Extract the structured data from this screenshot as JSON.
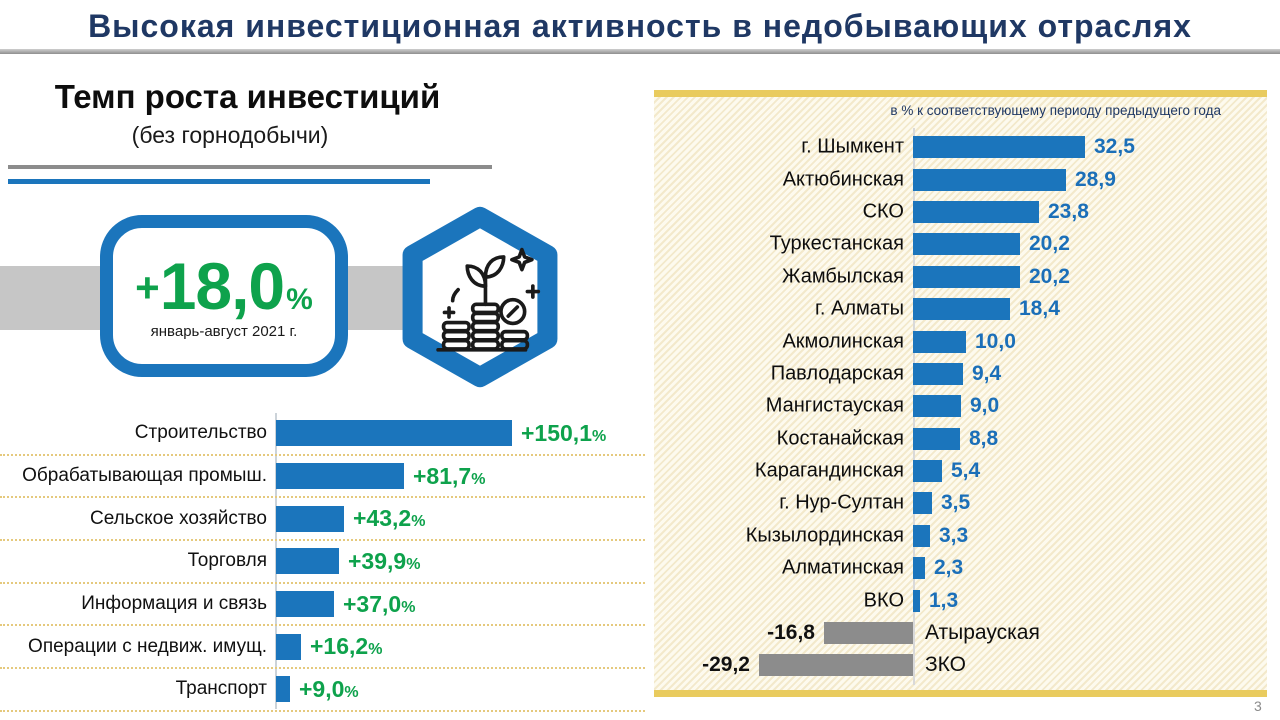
{
  "header": {
    "title": "Высокая инвестиционная активность в недобывающих отраслях"
  },
  "left_section": {
    "heading": "Темп роста инвестиций",
    "subheading": "(без горнодобычи)",
    "badge": {
      "value_plus": "+",
      "value": "18,0",
      "unit": "%",
      "caption": "январь-август 2021 г."
    },
    "icon": "coins-plant-growth-icon"
  },
  "right_section": {
    "note": "в % к соответствующему периоду предыдущего года"
  },
  "footer": {
    "page_number": "3"
  },
  "colors": {
    "accent_blue": "#1B75BC",
    "green": "#0EA24C",
    "navy": "#1F3864",
    "negative_gray": "#8C8C8C",
    "panel_gold": "#E9CB5E",
    "band_gray": "#C6C6C6"
  },
  "chart_data": [
    {
      "type": "bar",
      "orientation": "horizontal",
      "title": "Темп роста инвестиций (без горнодобычи)",
      "period": "январь-август 2021 г.",
      "total_growth": 18.0,
      "categories": [
        "Строительство",
        "Обрабатывающая промыш.",
        "Сельское хозяйство",
        "Торговля",
        "Информация и связь",
        "Операции с недвиж. имущ.",
        "Транспорт"
      ],
      "values": [
        150.1,
        81.7,
        43.2,
        39.9,
        37.0,
        16.2,
        9.0
      ],
      "display": [
        "+150,1",
        "+81,7",
        "+43,2",
        "+39,9",
        "+37,0",
        "+16,2",
        "+9,0"
      ],
      "unit": "%",
      "bar_color": "#1B75BC",
      "value_color": "#0EA24C",
      "xlim": [
        0,
        160
      ],
      "grid": false,
      "legend": "none"
    },
    {
      "type": "bar",
      "orientation": "horizontal",
      "subtitle": "в % к соответствующему периоду предыдущего года",
      "categories": [
        "г. Шымкент",
        "Актюбинская",
        "СКО",
        "Туркестанская",
        "Жамбылская",
        "г. Алматы",
        "Акмолинская",
        "Павлодарская",
        "Мангистауская",
        "Костанайская",
        "Карагандинская",
        "г. Нур-Султан",
        "Кызылординская",
        "Алматинская",
        "ВКО",
        "Атырауская",
        "ЗКО"
      ],
      "values": [
        32.5,
        28.9,
        23.8,
        20.2,
        20.2,
        18.4,
        10.0,
        9.4,
        9.0,
        8.8,
        5.4,
        3.5,
        3.3,
        2.3,
        1.3,
        -16.8,
        -29.2
      ],
      "display": [
        "32,5",
        "28,9",
        "23,8",
        "20,2",
        "20,2",
        "18,4",
        "10,0",
        "9,4",
        "9,0",
        "8,8",
        "5,4",
        "3,5",
        "3,3",
        "2,3",
        "1,3",
        "-16,8",
        "-29,2"
      ],
      "positive_color": "#1B75BC",
      "negative_color": "#8C8C8C",
      "xlim": [
        -35,
        35
      ],
      "grid": false,
      "legend": "none"
    }
  ]
}
